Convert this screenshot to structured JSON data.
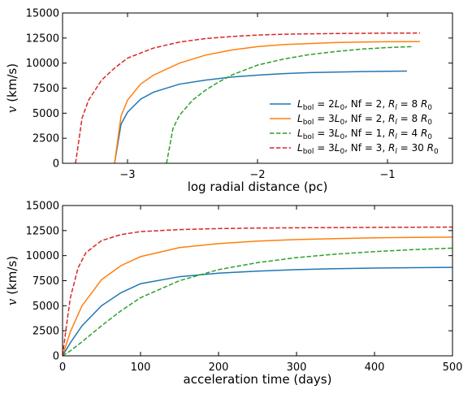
{
  "chart_data": [
    {
      "type": "line",
      "xlabel": "log radial distance (pc)",
      "ylabel": "v (km/s)",
      "xlim": [
        -3.5,
        -0.5
      ],
      "ylim": [
        0,
        15000
      ],
      "xticks": [
        -3,
        -2,
        -1
      ],
      "xtick_labels": [
        "−3",
        "−2",
        "−1"
      ],
      "yticks": [
        0,
        2500,
        5000,
        7500,
        10000,
        12500,
        15000
      ],
      "ytick_labels": [
        "0",
        "2500",
        "5000",
        "7500",
        "10000",
        "12500",
        "15000"
      ],
      "grid": false,
      "legend_position": "lower-right",
      "series": [
        {
          "name": "L_bol = 2L_0, Nf = 2, R_l = 8 R_0",
          "color": "#1f77b4",
          "dash": "solid",
          "x": [
            -3.1,
            -3.05,
            -3.0,
            -2.9,
            -2.8,
            -2.6,
            -2.4,
            -2.2,
            -2.0,
            -1.8,
            -1.6,
            -1.4,
            -1.2,
            -1.0,
            -0.85
          ],
          "y": [
            0,
            3900,
            5100,
            6400,
            7100,
            7900,
            8300,
            8600,
            8800,
            8950,
            9050,
            9100,
            9150,
            9180,
            9200
          ]
        },
        {
          "name": "L_bol = 3L_0, Nf = 2, R_l = 8 R_0",
          "color": "#ff7f0e",
          "dash": "solid",
          "x": [
            -3.1,
            -3.05,
            -3.0,
            -2.9,
            -2.8,
            -2.6,
            -2.4,
            -2.2,
            -2.0,
            -1.8,
            -1.6,
            -1.4,
            -1.2,
            -1.0,
            -0.75
          ],
          "y": [
            0,
            4700,
            6300,
            7900,
            8800,
            10000,
            10800,
            11300,
            11650,
            11850,
            11950,
            12050,
            12100,
            12130,
            12150
          ]
        },
        {
          "name": "L_bol = 3L_0, Nf = 1, R_l = 4 R_0",
          "color": "#2ca02c",
          "dash": "dashed",
          "x": [
            -2.7,
            -2.65,
            -2.6,
            -2.5,
            -2.4,
            -2.3,
            -2.2,
            -2.0,
            -1.8,
            -1.6,
            -1.4,
            -1.2,
            -1.0,
            -0.8
          ],
          "y": [
            0,
            3500,
            4800,
            6300,
            7300,
            8100,
            8800,
            9800,
            10400,
            10850,
            11150,
            11400,
            11550,
            11650
          ]
        },
        {
          "name": "L_bol = 3L_0, Nf = 3, R_l = 30 R_0",
          "color": "#d62728",
          "dash": "dashed",
          "x": [
            -3.4,
            -3.35,
            -3.3,
            -3.2,
            -3.1,
            -3.0,
            -2.8,
            -2.6,
            -2.4,
            -2.2,
            -2.0,
            -1.8,
            -1.6,
            -1.4,
            -1.2,
            -1.0,
            -0.75
          ],
          "y": [
            0,
            4500,
            6300,
            8300,
            9500,
            10500,
            11500,
            12100,
            12450,
            12650,
            12800,
            12880,
            12920,
            12950,
            12970,
            12990,
            13000
          ]
        }
      ]
    },
    {
      "type": "line",
      "xlabel": "acceleration time (days)",
      "ylabel": "v (km/s)",
      "xlim": [
        0,
        500
      ],
      "ylim": [
        0,
        15000
      ],
      "xticks": [
        0,
        100,
        200,
        300,
        400,
        500
      ],
      "xtick_labels": [
        "0",
        "100",
        "200",
        "300",
        "400",
        "500"
      ],
      "yticks": [
        0,
        2500,
        5000,
        7500,
        10000,
        12500,
        15000
      ],
      "ytick_labels": [
        "0",
        "2500",
        "5000",
        "7500",
        "10000",
        "12500",
        "15000"
      ],
      "grid": false,
      "series": [
        {
          "name": "L_bol = 2L_0, Nf = 2, R_l = 8 R_0",
          "color": "#1f77b4",
          "dash": "solid",
          "x": [
            0,
            10,
            25,
            50,
            75,
            100,
            150,
            200,
            250,
            300,
            350,
            400,
            450,
            500
          ],
          "y": [
            0,
            1300,
            3000,
            5000,
            6300,
            7200,
            7900,
            8250,
            8450,
            8600,
            8700,
            8760,
            8800,
            8830
          ]
        },
        {
          "name": "L_bol = 3L_0, Nf = 2, R_l = 8 R_0",
          "color": "#ff7f0e",
          "dash": "solid",
          "x": [
            0,
            10,
            25,
            50,
            75,
            100,
            150,
            200,
            250,
            300,
            350,
            400,
            450,
            500
          ],
          "y": [
            0,
            2400,
            5000,
            7600,
            9000,
            9900,
            10800,
            11200,
            11450,
            11600,
            11700,
            11780,
            11820,
            11850
          ]
        },
        {
          "name": "L_bol = 3L_0, Nf = 1, R_l = 4 R_0",
          "color": "#2ca02c",
          "dash": "dashed",
          "x": [
            0,
            10,
            25,
            50,
            75,
            100,
            150,
            200,
            250,
            300,
            350,
            400,
            450,
            500
          ],
          "y": [
            0,
            500,
            1400,
            3000,
            4500,
            5800,
            7500,
            8600,
            9300,
            9800,
            10150,
            10400,
            10600,
            10750
          ]
        },
        {
          "name": "L_bol = 3L_0, Nf = 3, R_l = 30 R_0",
          "color": "#d62728",
          "dash": "dashed",
          "x": [
            0,
            5,
            10,
            20,
            30,
            50,
            75,
            100,
            150,
            200,
            250,
            300,
            400,
            500
          ],
          "y": [
            0,
            3000,
            5800,
            8800,
            10300,
            11500,
            12100,
            12400,
            12600,
            12700,
            12750,
            12780,
            12820,
            12850
          ]
        }
      ]
    }
  ]
}
